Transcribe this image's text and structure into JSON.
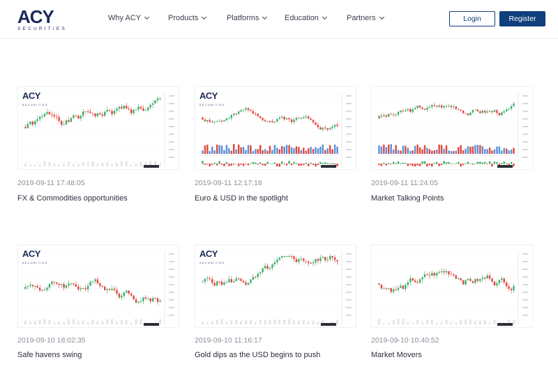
{
  "header": {
    "logo_text": "ACY",
    "logo_sub": "SECURITIES",
    "nav": [
      {
        "label": "Why ACY"
      },
      {
        "label": "Products"
      },
      {
        "label": "Platforms"
      },
      {
        "label": "Education"
      },
      {
        "label": "Partners"
      }
    ],
    "login_label": "Login",
    "register_label": "Register"
  },
  "articles": [
    {
      "date": "2019-09-11 17:48:05",
      "title": "FX & Commodities opportunities",
      "thumb_logo": "ACY"
    },
    {
      "date": "2019-09-11 12:17:18",
      "title": "Euro & USD in the spotlight",
      "thumb_logo": "ACY"
    },
    {
      "date": "2019-09-11 11:24:05",
      "title": "Market Talking Points",
      "thumb_logo": ""
    },
    {
      "date": "2019-09-10 18:02:35",
      "title": "Safe havens swing",
      "thumb_logo": "ACY"
    },
    {
      "date": "2019-09-10 11:16:17",
      "title": "Gold dips as the USD begins to push",
      "thumb_logo": "ACY"
    },
    {
      "date": "2019-09-10 10:40:52",
      "title": "Market Movers",
      "thumb_logo": ""
    }
  ],
  "colors": {
    "brand": "#1c2a57",
    "register_bg": "#0f3f7c",
    "candle_up": "#3fae6a",
    "candle_down": "#e0473f"
  }
}
